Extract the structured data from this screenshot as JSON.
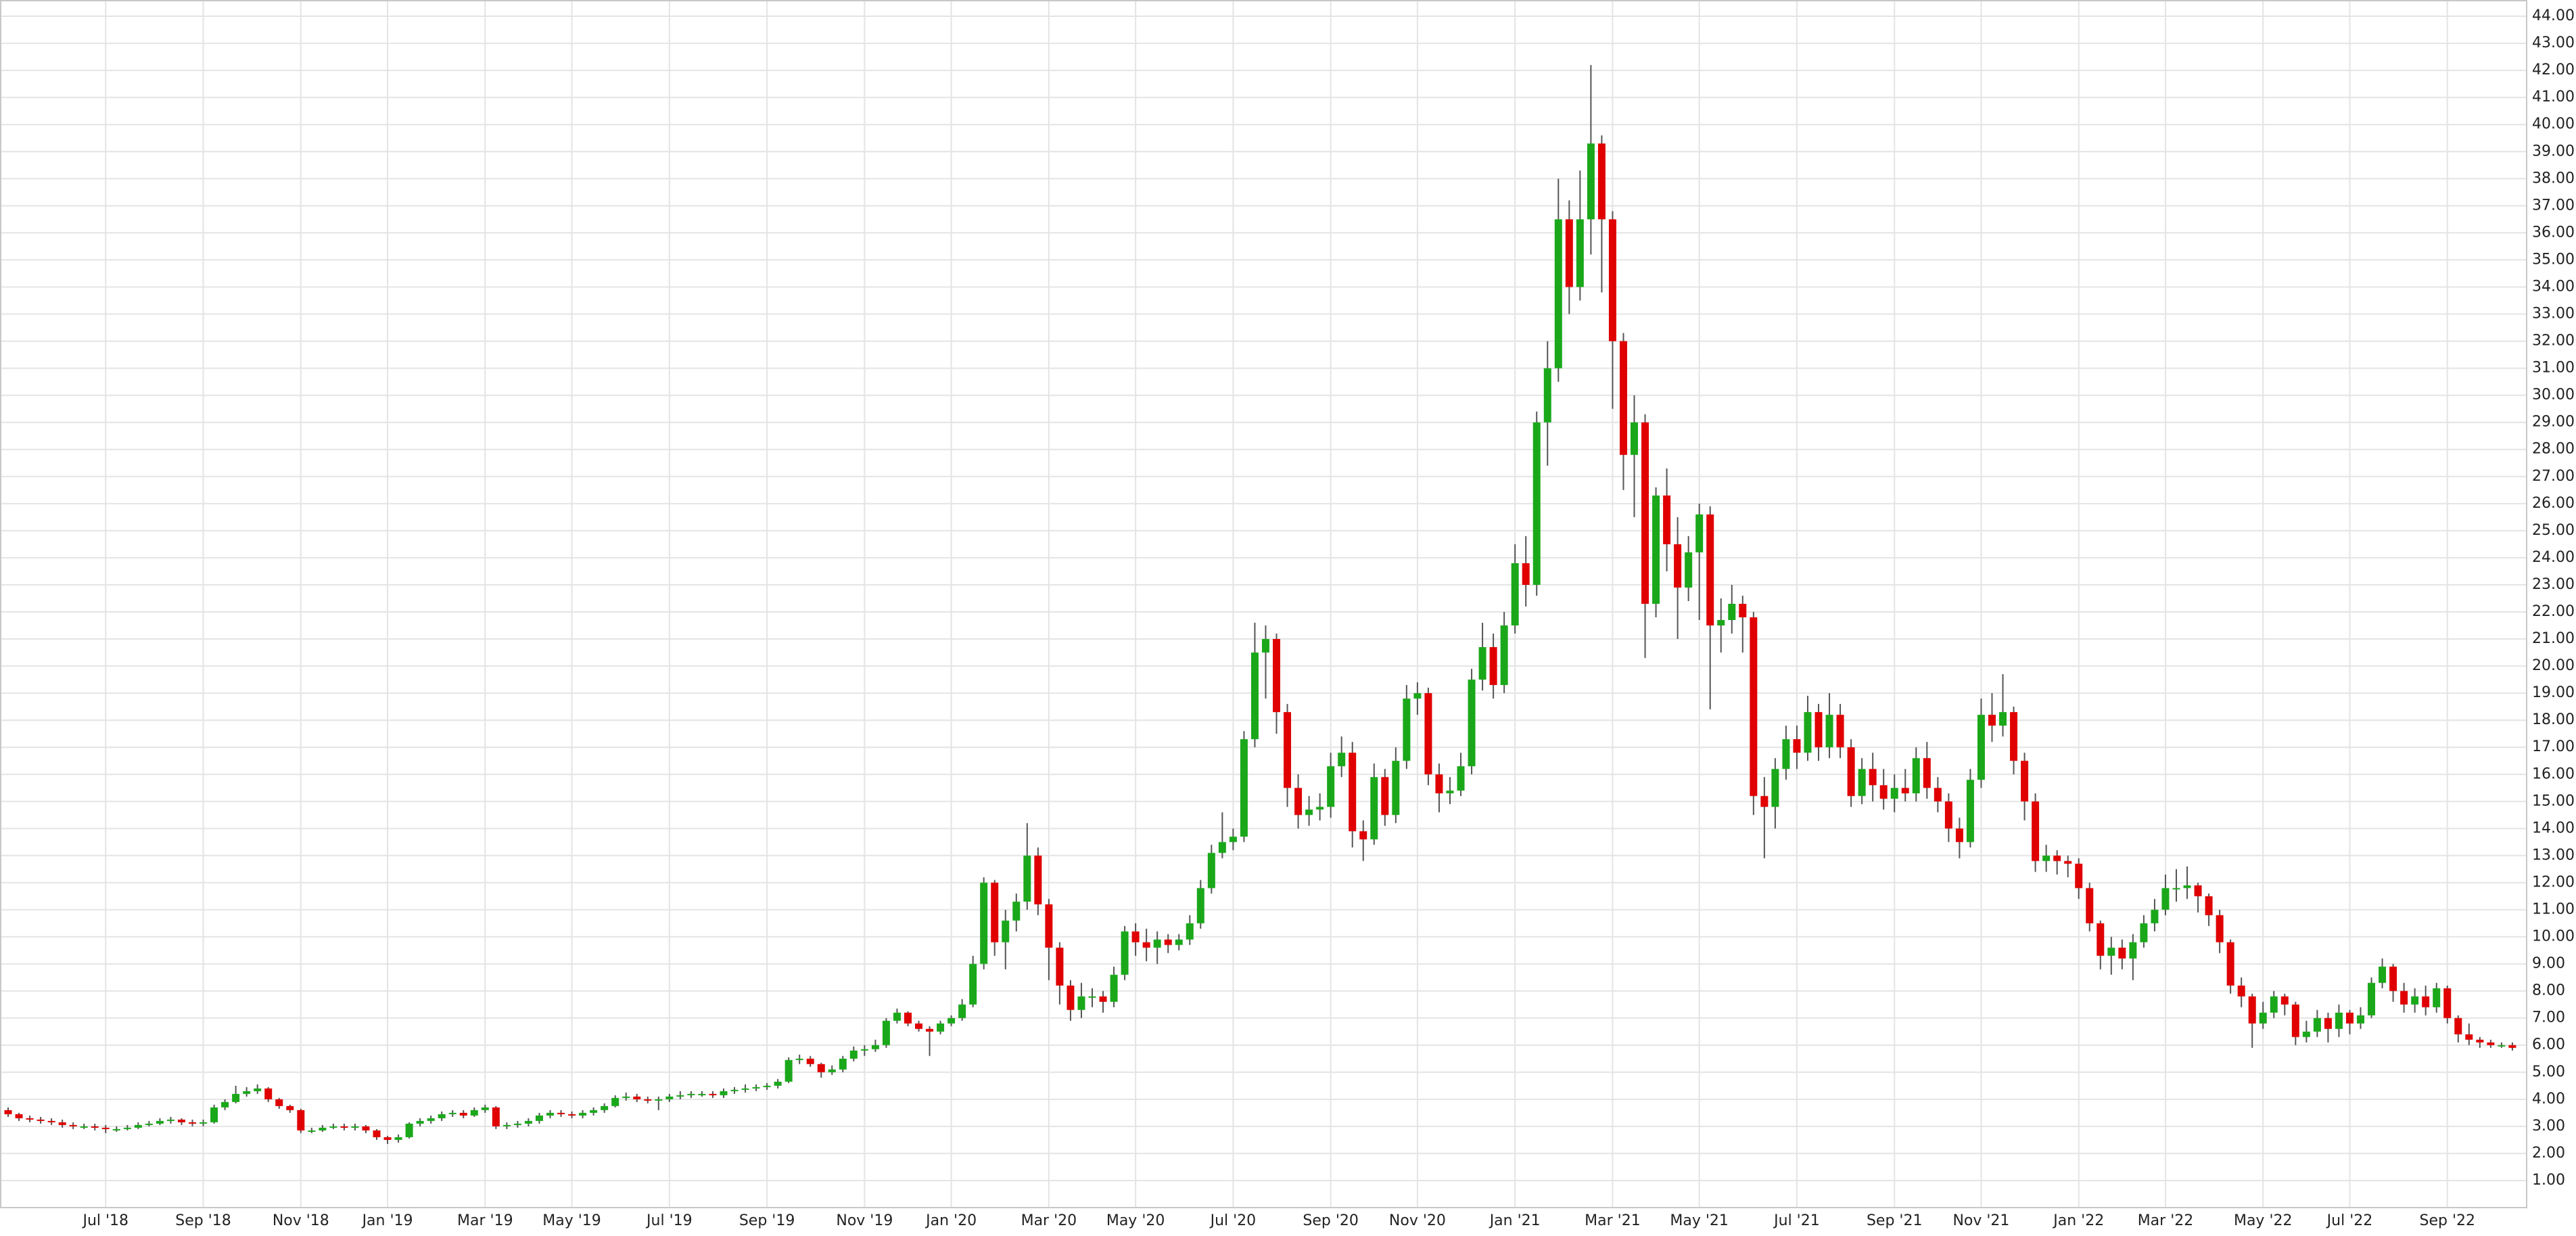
{
  "chart_data": {
    "type": "candlestick",
    "up_color": "#1aa81a",
    "down_color": "#e00000",
    "wick_color": "#555555",
    "grid": true,
    "ylim": [
      0,
      44.6
    ],
    "yticks": [
      {
        "value": 1,
        "label": "1.00"
      },
      {
        "value": 2,
        "label": "2.00"
      },
      {
        "value": 3,
        "label": "3.00"
      },
      {
        "value": 4,
        "label": "4.00"
      },
      {
        "value": 5,
        "label": "5.00"
      },
      {
        "value": 6,
        "label": "6.00"
      },
      {
        "value": 7,
        "label": "7.00"
      },
      {
        "value": 8,
        "label": "8.00"
      },
      {
        "value": 9,
        "label": "9.00"
      },
      {
        "value": 10,
        "label": "10.00"
      },
      {
        "value": 11,
        "label": "11.00"
      },
      {
        "value": 12,
        "label": "12.00"
      },
      {
        "value": 13,
        "label": "13.00"
      },
      {
        "value": 14,
        "label": "14.00"
      },
      {
        "value": 15,
        "label": "15.00"
      },
      {
        "value": 16,
        "label": "16.00"
      },
      {
        "value": 17,
        "label": "17.00"
      },
      {
        "value": 18,
        "label": "18.00"
      },
      {
        "value": 19,
        "label": "19.00"
      },
      {
        "value": 20,
        "label": "20.00"
      },
      {
        "value": 21,
        "label": "21.00"
      },
      {
        "value": 22,
        "label": "22.00"
      },
      {
        "value": 23,
        "label": "23.00"
      },
      {
        "value": 24,
        "label": "24.00"
      },
      {
        "value": 25,
        "label": "25.00"
      },
      {
        "value": 26,
        "label": "26.00"
      },
      {
        "value": 27,
        "label": "27.00"
      },
      {
        "value": 28,
        "label": "28.00"
      },
      {
        "value": 29,
        "label": "29.00"
      },
      {
        "value": 30,
        "label": "30.00"
      },
      {
        "value": 31,
        "label": "31.00"
      },
      {
        "value": 32,
        "label": "32.00"
      },
      {
        "value": 33,
        "label": "33.00"
      },
      {
        "value": 34,
        "label": "34.00"
      },
      {
        "value": 35,
        "label": "35.00"
      },
      {
        "value": 36,
        "label": "36.00"
      },
      {
        "value": 37,
        "label": "37.00"
      },
      {
        "value": 38,
        "label": "38.00"
      },
      {
        "value": 39,
        "label": "39.00"
      },
      {
        "value": 40,
        "label": "40.00"
      },
      {
        "value": 41,
        "label": "41.00"
      },
      {
        "value": 42,
        "label": "42.00"
      },
      {
        "value": 43,
        "label": "43.00"
      },
      {
        "value": 44,
        "label": "44.00"
      }
    ],
    "categories": [
      null,
      null,
      null,
      null,
      null,
      null,
      null,
      null,
      null,
      "Jul '18",
      null,
      null,
      null,
      null,
      null,
      null,
      null,
      null,
      "Sep '18",
      null,
      null,
      null,
      null,
      null,
      null,
      null,
      null,
      "Nov '18",
      null,
      null,
      null,
      null,
      null,
      null,
      null,
      "Jan '19",
      null,
      null,
      null,
      null,
      null,
      null,
      null,
      null,
      "Mar '19",
      null,
      null,
      null,
      null,
      null,
      null,
      null,
      "May '19",
      null,
      null,
      null,
      null,
      null,
      null,
      null,
      null,
      "Jul '19",
      null,
      null,
      null,
      null,
      null,
      null,
      null,
      null,
      "Sep '19",
      null,
      null,
      null,
      null,
      null,
      null,
      null,
      null,
      "Nov '19",
      null,
      null,
      null,
      null,
      null,
      null,
      null,
      "Jan '20",
      null,
      null,
      null,
      null,
      null,
      null,
      null,
      null,
      "Mar '20",
      null,
      null,
      null,
      null,
      null,
      null,
      null,
      "May '20",
      null,
      null,
      null,
      null,
      null,
      null,
      null,
      null,
      "Jul '20",
      null,
      null,
      null,
      null,
      null,
      null,
      null,
      null,
      "Sep '20",
      null,
      null,
      null,
      null,
      null,
      null,
      null,
      "Nov '20",
      null,
      null,
      null,
      null,
      null,
      null,
      null,
      null,
      "Jan '21",
      null,
      null,
      null,
      null,
      null,
      null,
      null,
      null,
      "Mar '21",
      null,
      null,
      null,
      null,
      null,
      null,
      null,
      "May '21",
      null,
      null,
      null,
      null,
      null,
      null,
      null,
      null,
      "Jul '21",
      null,
      null,
      null,
      null,
      null,
      null,
      null,
      null,
      "Sep '21",
      null,
      null,
      null,
      null,
      null,
      null,
      null,
      "Nov '21",
      null,
      null,
      null,
      null,
      null,
      null,
      null,
      null,
      "Jan '22",
      null,
      null,
      null,
      null,
      null,
      null,
      null,
      "Mar '22",
      null,
      null,
      null,
      null,
      null,
      null,
      null,
      null,
      "May '22",
      null,
      null,
      null,
      null,
      null,
      null,
      null,
      "Jul '22",
      null,
      null,
      null,
      null,
      null,
      null,
      null,
      null,
      "Sep '22",
      null,
      null,
      null,
      null,
      null,
      null
    ],
    "open": [
      3.6,
      3.45,
      3.3,
      3.25,
      3.2,
      3.15,
      3.05,
      3.0,
      3.0,
      2.95,
      2.9,
      2.9,
      2.95,
      3.05,
      3.1,
      3.2,
      3.25,
      3.15,
      3.1,
      3.15,
      3.7,
      3.9,
      4.2,
      4.3,
      4.4,
      4.0,
      3.75,
      3.6,
      2.85,
      2.85,
      2.95,
      3.0,
      2.95,
      3.0,
      2.85,
      2.6,
      2.5,
      2.6,
      3.1,
      3.2,
      3.3,
      3.45,
      3.5,
      3.4,
      3.6,
      3.7,
      3.0,
      3.05,
      3.1,
      3.2,
      3.4,
      3.5,
      3.45,
      3.4,
      3.5,
      3.6,
      3.75,
      4.05,
      4.1,
      4.0,
      3.95,
      4.0,
      4.1,
      4.15,
      4.2,
      4.2,
      4.15,
      4.3,
      4.35,
      4.4,
      4.45,
      4.5,
      4.65,
      5.45,
      5.5,
      5.3,
      5.0,
      5.1,
      5.5,
      5.8,
      5.85,
      6.0,
      6.9,
      7.2,
      6.8,
      6.6,
      6.5,
      6.8,
      7.0,
      7.5,
      9.0,
      12.0,
      9.8,
      10.6,
      11.3,
      13.0,
      11.2,
      9.6,
      8.2,
      7.3,
      7.8,
      7.8,
      7.6,
      8.6,
      10.2,
      9.8,
      9.6,
      9.9,
      9.7,
      9.9,
      10.5,
      11.8,
      13.1,
      13.5,
      13.7,
      17.3,
      20.5,
      21.0,
      18.3,
      15.5,
      14.5,
      14.7,
      14.8,
      16.3,
      16.8,
      13.9,
      13.6,
      15.9,
      14.5,
      16.5,
      18.8,
      19.0,
      16.0,
      15.3,
      15.4,
      16.3,
      19.5,
      20.7,
      19.3,
      21.5,
      23.8,
      23.0,
      29.0,
      31.0,
      36.5,
      34.0,
      36.5,
      39.3,
      36.5,
      32.0,
      27.8,
      29.0,
      22.3,
      26.3,
      24.5,
      22.9,
      24.2,
      25.6,
      21.5,
      21.7,
      22.3,
      21.8,
      15.2,
      14.8,
      16.2,
      17.3,
      16.8,
      18.3,
      17.0,
      18.2,
      17.0,
      15.2,
      16.2,
      15.6,
      15.1,
      15.5,
      15.3,
      16.6,
      15.5,
      15.0,
      14.0,
      13.5,
      15.8,
      18.2,
      17.8,
      18.3,
      16.5,
      15.0,
      12.8,
      13.0,
      12.8,
      12.7,
      11.8,
      10.5,
      9.3,
      9.6,
      9.2,
      9.8,
      10.5,
      11.0,
      11.8,
      11.8,
      11.9,
      11.5,
      10.8,
      9.8,
      8.2,
      7.8,
      6.8,
      7.2,
      7.8,
      7.5,
      6.3,
      6.5,
      7.0,
      6.6,
      7.2,
      6.8,
      7.1,
      8.3,
      8.9,
      8.0,
      7.5,
      7.8,
      7.4,
      8.1,
      7.0,
      6.4,
      6.2,
      6.1,
      6.0,
      6.0
    ],
    "high": [
      3.7,
      3.5,
      3.4,
      3.35,
      3.3,
      3.25,
      3.15,
      3.1,
      3.1,
      3.05,
      3.0,
      3.05,
      3.15,
      3.2,
      3.3,
      3.35,
      3.3,
      3.25,
      3.25,
      3.8,
      4.0,
      4.5,
      4.45,
      4.55,
      4.45,
      4.05,
      3.8,
      3.65,
      2.95,
      3.05,
      3.1,
      3.1,
      3.1,
      3.05,
      2.9,
      2.65,
      2.7,
      3.15,
      3.3,
      3.4,
      3.55,
      3.6,
      3.6,
      3.7,
      3.8,
      3.75,
      3.15,
      3.2,
      3.3,
      3.5,
      3.6,
      3.6,
      3.55,
      3.6,
      3.7,
      3.85,
      4.15,
      4.25,
      4.2,
      4.1,
      4.1,
      4.2,
      4.3,
      4.3,
      4.3,
      4.3,
      4.4,
      4.45,
      4.55,
      4.55,
      4.6,
      4.75,
      5.55,
      5.65,
      5.6,
      5.35,
      5.25,
      5.6,
      5.95,
      6.0,
      6.2,
      7.0,
      7.35,
      7.25,
      6.9,
      6.7,
      6.9,
      7.1,
      7.7,
      9.3,
      12.2,
      12.1,
      11.0,
      11.6,
      14.2,
      13.3,
      11.4,
      9.8,
      8.4,
      8.3,
      8.1,
      8.0,
      8.9,
      10.4,
      10.5,
      10.3,
      10.2,
      10.1,
      10.1,
      10.8,
      12.1,
      13.4,
      14.6,
      14.0,
      17.6,
      21.6,
      21.5,
      21.2,
      18.6,
      16.0,
      15.2,
      15.3,
      16.8,
      17.4,
      17.2,
      14.3,
      16.4,
      16.2,
      17.0,
      19.3,
      19.4,
      19.2,
      16.4,
      15.9,
      16.8,
      19.9,
      21.6,
      21.2,
      22.0,
      24.5,
      24.8,
      29.4,
      32.0,
      38.0,
      37.2,
      38.3,
      42.2,
      39.6,
      36.8,
      32.3,
      30.0,
      29.3,
      26.6,
      27.3,
      25.5,
      24.8,
      26.0,
      25.9,
      22.5,
      23.0,
      22.6,
      22.0,
      15.9,
      16.6,
      17.8,
      17.8,
      18.9,
      18.6,
      19.0,
      18.6,
      17.3,
      16.6,
      16.8,
      16.2,
      16.0,
      16.2,
      17.0,
      17.2,
      15.9,
      15.3,
      14.4,
      16.2,
      18.8,
      19.0,
      19.7,
      18.5,
      16.8,
      15.3,
      13.4,
      13.2,
      13.0,
      12.9,
      12.0,
      10.6,
      10.0,
      9.9,
      10.1,
      10.8,
      11.4,
      12.3,
      12.5,
      12.6,
      12.0,
      11.6,
      11.0,
      9.9,
      8.5,
      7.9,
      7.6,
      8.0,
      7.9,
      7.6,
      6.9,
      7.3,
      7.2,
      7.5,
      7.3,
      7.4,
      8.5,
      9.2,
      9.0,
      8.3,
      8.1,
      8.2,
      8.3,
      8.2,
      7.1,
      6.8,
      6.3,
      6.2,
      6.1,
      6.1
    ],
    "low": [
      3.35,
      3.2,
      3.15,
      3.1,
      3.05,
      2.95,
      2.9,
      2.9,
      2.85,
      2.75,
      2.8,
      2.85,
      2.9,
      3.0,
      3.05,
      3.1,
      3.05,
      3.0,
      3.0,
      3.1,
      3.6,
      3.85,
      4.1,
      4.2,
      3.9,
      3.65,
      3.5,
      2.75,
      2.75,
      2.8,
      2.9,
      2.85,
      2.85,
      2.75,
      2.5,
      2.35,
      2.4,
      2.55,
      3.0,
      3.1,
      3.2,
      3.35,
      3.3,
      3.35,
      3.5,
      2.9,
      2.9,
      2.95,
      3.0,
      3.1,
      3.3,
      3.35,
      3.3,
      3.3,
      3.4,
      3.5,
      3.7,
      3.95,
      3.9,
      3.85,
      3.6,
      3.9,
      4.0,
      4.05,
      4.1,
      4.05,
      4.05,
      4.2,
      4.25,
      4.3,
      4.35,
      4.4,
      4.6,
      5.3,
      5.2,
      4.8,
      4.9,
      5.0,
      5.4,
      5.6,
      5.75,
      5.9,
      6.8,
      6.7,
      6.5,
      5.6,
      6.4,
      6.7,
      6.9,
      7.4,
      8.8,
      9.3,
      8.8,
      10.2,
      11.0,
      10.8,
      8.4,
      7.5,
      6.9,
      7.0,
      7.4,
      7.2,
      7.4,
      8.4,
      9.3,
      9.1,
      9.0,
      9.4,
      9.5,
      9.7,
      10.3,
      11.6,
      12.9,
      13.2,
      13.5,
      17.0,
      18.8,
      17.5,
      14.8,
      14.0,
      14.1,
      14.3,
      14.4,
      15.9,
      13.3,
      12.8,
      13.4,
      14.1,
      14.2,
      16.2,
      18.2,
      15.6,
      14.6,
      14.9,
      15.2,
      16.0,
      19.1,
      18.8,
      19.0,
      21.2,
      22.2,
      22.6,
      27.4,
      30.5,
      33.0,
      33.5,
      35.2,
      33.8,
      29.5,
      26.5,
      25.5,
      20.3,
      21.8,
      23.5,
      21.0,
      22.4,
      21.7,
      18.4,
      20.5,
      21.2,
      20.5,
      14.5,
      12.9,
      14.0,
      15.8,
      16.2,
      16.5,
      16.5,
      16.6,
      16.6,
      14.8,
      14.9,
      15.0,
      14.7,
      14.6,
      15.0,
      15.0,
      15.1,
      14.6,
      13.5,
      12.9,
      13.3,
      15.5,
      17.2,
      17.4,
      16.0,
      14.3,
      12.4,
      12.4,
      12.3,
      12.2,
      11.4,
      10.2,
      8.8,
      8.6,
      8.8,
      8.4,
      9.6,
      10.2,
      10.8,
      11.3,
      11.4,
      10.9,
      10.4,
      9.4,
      7.9,
      7.4,
      5.9,
      6.6,
      7.0,
      7.1,
      6.0,
      6.1,
      6.3,
      6.1,
      6.3,
      6.4,
      6.6,
      7.0,
      8.1,
      7.6,
      7.2,
      7.2,
      7.1,
      7.2,
      6.8,
      6.1,
      6.0,
      5.9,
      5.9,
      5.9,
      5.8
    ],
    "close": [
      3.45,
      3.3,
      3.25,
      3.2,
      3.15,
      3.05,
      3.0,
      3.0,
      2.95,
      2.9,
      2.9,
      2.95,
      3.05,
      3.1,
      3.2,
      3.25,
      3.15,
      3.1,
      3.15,
      3.7,
      3.9,
      4.2,
      4.3,
      4.4,
      4.0,
      3.75,
      3.6,
      2.85,
      2.85,
      2.95,
      3.0,
      2.95,
      3.0,
      2.85,
      2.6,
      2.5,
      2.6,
      3.1,
      3.2,
      3.3,
      3.45,
      3.5,
      3.4,
      3.6,
      3.7,
      3.0,
      3.05,
      3.1,
      3.2,
      3.4,
      3.5,
      3.45,
      3.4,
      3.5,
      3.6,
      3.75,
      4.05,
      4.1,
      4.0,
      3.95,
      4.0,
      4.1,
      4.15,
      4.2,
      4.2,
      4.15,
      4.3,
      4.35,
      4.4,
      4.45,
      4.5,
      4.65,
      5.45,
      5.5,
      5.3,
      5.0,
      5.1,
      5.5,
      5.8,
      5.85,
      6.0,
      6.9,
      7.2,
      6.8,
      6.6,
      6.5,
      6.8,
      7.0,
      7.5,
      9.0,
      12.0,
      9.8,
      10.6,
      11.3,
      13.0,
      11.2,
      9.6,
      8.2,
      7.3,
      7.8,
      7.8,
      7.6,
      8.6,
      10.2,
      9.8,
      9.6,
      9.9,
      9.7,
      9.9,
      10.5,
      11.8,
      13.1,
      13.5,
      13.7,
      17.3,
      20.5,
      21.0,
      18.3,
      15.5,
      14.5,
      14.7,
      14.8,
      16.3,
      16.8,
      13.9,
      13.6,
      15.9,
      14.5,
      16.5,
      18.8,
      19.0,
      16.0,
      15.3,
      15.4,
      16.3,
      19.5,
      20.7,
      19.3,
      21.5,
      23.8,
      23.0,
      29.0,
      31.0,
      36.5,
      34.0,
      36.5,
      39.3,
      36.5,
      32.0,
      27.8,
      29.0,
      22.3,
      26.3,
      24.5,
      22.9,
      24.2,
      25.6,
      21.5,
      21.7,
      22.3,
      21.8,
      15.2,
      14.8,
      16.2,
      17.3,
      16.8,
      18.3,
      17.0,
      18.2,
      17.0,
      15.2,
      16.2,
      15.6,
      15.1,
      15.5,
      15.3,
      16.6,
      15.5,
      15.0,
      14.0,
      13.5,
      15.8,
      18.2,
      17.8,
      18.3,
      16.5,
      15.0,
      12.8,
      13.0,
      12.8,
      12.7,
      11.8,
      10.5,
      9.3,
      9.6,
      9.2,
      9.8,
      10.5,
      11.0,
      11.8,
      11.8,
      11.9,
      11.5,
      10.8,
      9.8,
      8.2,
      7.8,
      6.8,
      7.2,
      7.8,
      7.5,
      6.3,
      6.5,
      7.0,
      6.6,
      7.2,
      6.8,
      7.1,
      8.3,
      8.9,
      8.0,
      7.5,
      7.8,
      7.4,
      8.1,
      7.0,
      6.4,
      6.2,
      6.1,
      6.0,
      6.0,
      5.9
    ]
  }
}
